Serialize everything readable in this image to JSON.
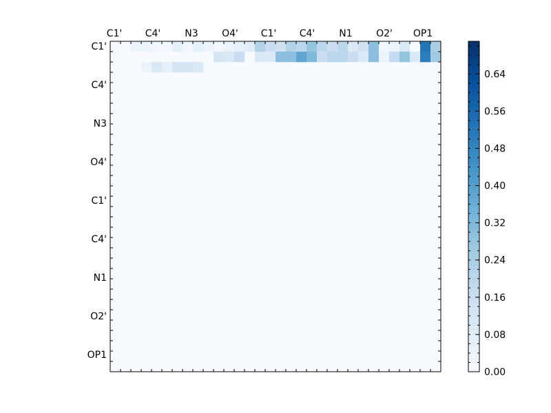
{
  "chart_data": {
    "type": "heatmap",
    "title": "",
    "xlabel": "",
    "ylabel": "",
    "x_tick_labels": [
      "C1'",
      "C4'",
      "N3",
      "O4'",
      "C1'",
      "C4'",
      "N1",
      "O2'",
      "OP1"
    ],
    "y_tick_labels": [
      "C1'",
      "C4'",
      "N3",
      "O4'",
      "C1'",
      "C4'",
      "N1",
      "O2'",
      "OP1"
    ],
    "grid": false,
    "colormap": "Blues",
    "colorbar": {
      "position": "right",
      "ticks": [
        "0.00",
        "0.08",
        "0.16",
        "0.24",
        "0.32",
        "0.40",
        "0.48",
        "0.56",
        "0.64"
      ],
      "min": 0.0,
      "max": 0.71
    },
    "matrix_size": 32,
    "values_note_free": true,
    "rows": [
      [
        0.0,
        0.0,
        0.04,
        0.04,
        0.02,
        0.02,
        0.06,
        0.02,
        0.06,
        0.04,
        0.02,
        0.04,
        0.06,
        0.08,
        0.22,
        0.16,
        0.14,
        0.22,
        0.2,
        0.28,
        0.2,
        0.16,
        0.2,
        0.1,
        0.14,
        0.3,
        0.02,
        0.04,
        0.1,
        0.0,
        0.52,
        0.24
      ],
      [
        0.0,
        0.0,
        0.0,
        0.0,
        0.0,
        0.0,
        0.0,
        0.0,
        0.0,
        0.0,
        0.12,
        0.1,
        0.16,
        0.0,
        0.1,
        0.1,
        0.3,
        0.3,
        0.38,
        0.32,
        0.16,
        0.2,
        0.2,
        0.16,
        0.1,
        0.3,
        0.04,
        0.18,
        0.28,
        0.1,
        0.5,
        0.26
      ],
      [
        0.0,
        0.0,
        0.0,
        0.04,
        0.1,
        0.06,
        0.12,
        0.12,
        0.1,
        0.0,
        0.0,
        0.0,
        0.0,
        0.0,
        0.0,
        0.0,
        0.0,
        0.0,
        0.0,
        0.0,
        0.0,
        0.0,
        0.0,
        0.0,
        0.0,
        0.0,
        0.0,
        0.0,
        0.0,
        0.0,
        0.0,
        0.0
      ],
      [
        0.0,
        0.0,
        0.0,
        0.0,
        0.0,
        0.0,
        0.0,
        0.0,
        0.0,
        0.0,
        0.0,
        0.0,
        0.0,
        0.0,
        0.0,
        0.0,
        0.0,
        0.0,
        0.0,
        0.0,
        0.0,
        0.0,
        0.0,
        0.0,
        0.0,
        0.0,
        0.0,
        0.0,
        0.0,
        0.0,
        0.0,
        0.0
      ]
    ]
  }
}
